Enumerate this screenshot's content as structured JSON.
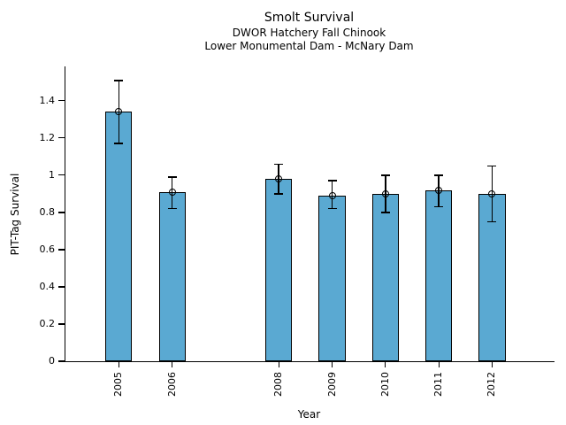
{
  "chart_data": {
    "type": "bar",
    "title": "Smolt Survival",
    "subtitle": [
      "DWOR Hatchery Fall Chinook",
      "Lower Monumental Dam - McNary Dam"
    ],
    "xlabel": "Year",
    "ylabel": "PIT-Tag Survival",
    "categories": [
      "2005",
      "2006",
      "2008",
      "2009",
      "2010",
      "2011",
      "2012"
    ],
    "x_positions": [
      2005,
      2006,
      2008,
      2009,
      2010,
      2011,
      2012
    ],
    "values": [
      1.34,
      0.91,
      0.98,
      0.89,
      0.9,
      0.92,
      0.9
    ],
    "error_low": [
      1.17,
      0.82,
      0.9,
      0.82,
      0.8,
      0.83,
      0.75
    ],
    "error_high": [
      1.51,
      0.99,
      1.06,
      0.97,
      1.0,
      1.0,
      1.05
    ],
    "ytick_labels": [
      "0",
      "0.2",
      "0.4",
      "0.6",
      "0.8",
      "1",
      "1.2",
      "1.4"
    ],
    "ytick_values": [
      0,
      0.2,
      0.4,
      0.6,
      0.8,
      1,
      1.2,
      1.4
    ],
    "ylim": [
      0,
      1.585
    ],
    "xlim": [
      2004,
      2013.17
    ],
    "bar_width_years": 0.5,
    "bar_fill": "#5AA9D2",
    "bar_edge": "#000000",
    "errorbar_color": "#000000",
    "marker": "open-circle",
    "grid": false
  }
}
